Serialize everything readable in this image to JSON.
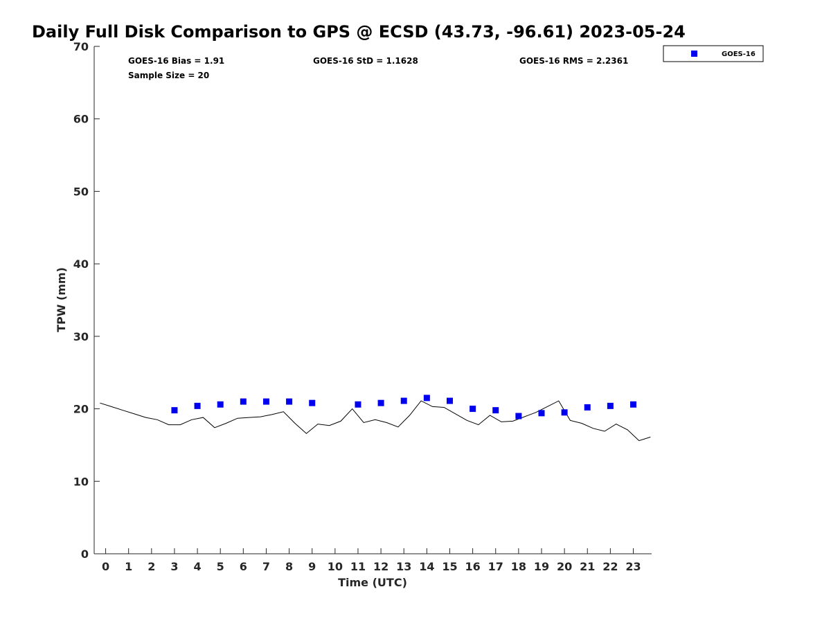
{
  "chart_data": {
    "type": "scatter",
    "title": "Daily Full Disk Comparison to GPS @ ECSD (43.73, -96.61) 2023-05-24",
    "xlabel": "Time (UTC)",
    "ylabel": "TPW (mm)",
    "xlim": [
      -0.5,
      23.8
    ],
    "ylim": [
      0,
      70
    ],
    "x_ticks": [
      0,
      1,
      2,
      3,
      4,
      5,
      6,
      7,
      8,
      9,
      10,
      11,
      12,
      13,
      14,
      15,
      16,
      17,
      18,
      19,
      20,
      21,
      22,
      23
    ],
    "y_ticks": [
      0,
      10,
      20,
      30,
      40,
      50,
      60,
      70
    ],
    "grid": false,
    "legend_position": "top-right-outside",
    "stats": {
      "bias": "GOES-16 Bias = 1.91",
      "std": "GOES-16 StD = 1.1628",
      "rms": "GOES-16 RMS = 2.2361",
      "sample_size": "Sample Size = 20"
    },
    "series": [
      {
        "name": "GOES-16",
        "kind": "scatter",
        "marker": "square",
        "color": "#0000ee",
        "x": [
          3,
          4,
          5,
          6,
          7,
          8,
          9,
          11,
          12,
          13,
          14,
          15,
          16,
          17,
          18,
          19,
          20,
          21,
          22,
          23
        ],
        "y": [
          19.8,
          20.4,
          20.6,
          21.0,
          21.0,
          21.0,
          20.8,
          20.6,
          20.8,
          21.1,
          21.5,
          21.1,
          20.0,
          19.8,
          19.0,
          19.4,
          19.5,
          20.2,
          20.4,
          20.6
        ]
      },
      {
        "kind": "line",
        "color": "#000000",
        "x": [
          -0.25,
          0.25,
          0.75,
          1.25,
          1.75,
          2.25,
          2.75,
          3.25,
          3.75,
          4.25,
          4.75,
          5.25,
          5.75,
          6.25,
          6.75,
          7.25,
          7.75,
          8.25,
          8.75,
          9.25,
          9.75,
          10.25,
          10.75,
          11.25,
          11.75,
          12.25,
          12.75,
          13.25,
          13.75,
          14.25,
          14.75,
          15.25,
          15.75,
          16.25,
          16.75,
          17.25,
          17.75,
          18.25,
          18.75,
          19.25,
          19.75,
          20.25,
          20.75,
          21.25,
          21.75,
          22.25,
          22.75,
          23.25,
          23.75
        ],
        "y": [
          20.8,
          20.3,
          19.8,
          19.3,
          18.8,
          18.5,
          17.8,
          17.8,
          18.5,
          18.8,
          17.4,
          18.0,
          18.7,
          18.8,
          18.9,
          19.2,
          19.6,
          18.0,
          16.6,
          17.9,
          17.7,
          18.3,
          20.0,
          18.1,
          18.5,
          18.1,
          17.5,
          19.1,
          21.1,
          20.3,
          20.2,
          19.3,
          18.4,
          17.8,
          19.1,
          18.2,
          18.3,
          18.9,
          19.5,
          20.3,
          21.1,
          18.4,
          18.0,
          17.3,
          16.9,
          17.9,
          17.1,
          15.6,
          16.1
        ]
      }
    ]
  }
}
